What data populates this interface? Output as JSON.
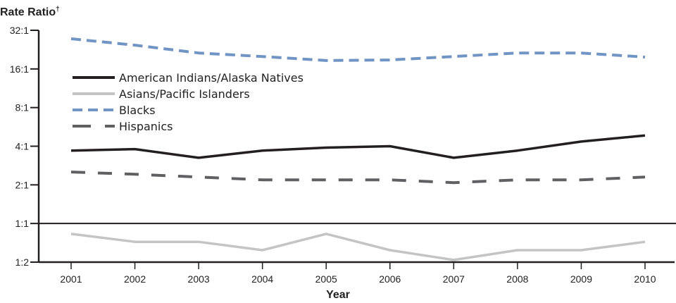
{
  "chart_data": {
    "type": "line",
    "ylabel": "Rate Ratio",
    "ylabel_mark": "†",
    "xlabel": "Year",
    "y_scale": "log2",
    "ylim": [
      0.5,
      32
    ],
    "y_ticks": [
      0.5,
      1,
      2,
      4,
      8,
      16,
      32
    ],
    "y_tick_labels": [
      "1:2",
      "1:1",
      "2:1",
      "4:1",
      "8:1",
      "16:1",
      "32:1"
    ],
    "x": [
      "2001",
      "2002",
      "2003",
      "2004",
      "2005",
      "2006",
      "2007",
      "2008",
      "2009",
      "2010"
    ],
    "reference_line": 1,
    "grid": false,
    "legend_position": "top-left",
    "series": [
      {
        "name": "American Indians/Alaska Natives",
        "color": "#231f20",
        "style": "solid",
        "values": [
          3.7,
          3.8,
          3.25,
          3.7,
          3.9,
          4.0,
          3.25,
          3.7,
          4.35,
          4.85
        ]
      },
      {
        "name": "Asians/Pacific Islanders",
        "color": "#c4c4c4",
        "style": "solid",
        "values": [
          0.83,
          0.72,
          0.72,
          0.62,
          0.83,
          0.62,
          0.52,
          0.62,
          0.62,
          0.72
        ]
      },
      {
        "name": "Blacks",
        "color": "#7094c4",
        "style": "short-dash",
        "values": [
          27.5,
          24.5,
          21.3,
          20.0,
          18.6,
          18.8,
          20.0,
          21.3,
          21.3,
          19.8
        ]
      },
      {
        "name": "Hispanics",
        "color": "#606062",
        "style": "long-dash",
        "values": [
          2.52,
          2.42,
          2.3,
          2.19,
          2.19,
          2.19,
          2.08,
          2.19,
          2.19,
          2.3
        ]
      }
    ]
  }
}
